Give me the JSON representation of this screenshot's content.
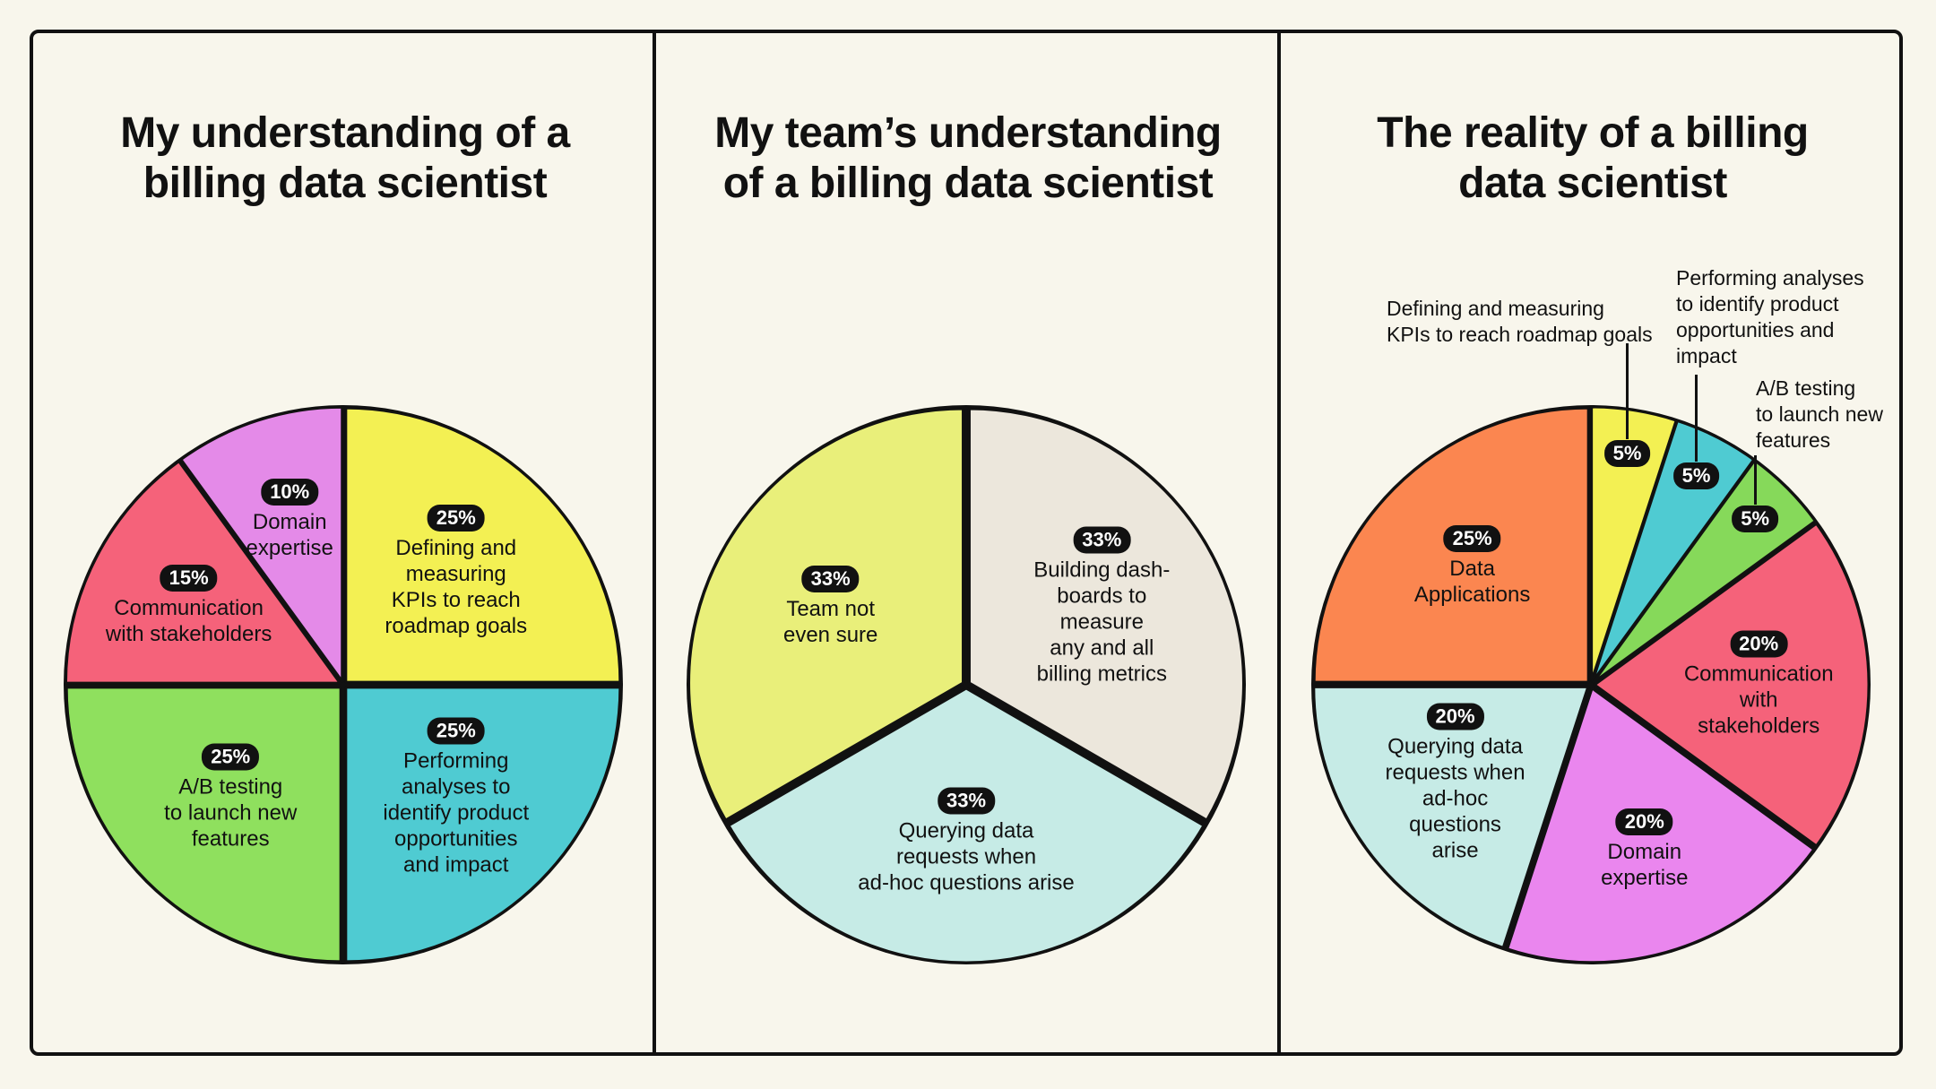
{
  "colors": {
    "pink": "#f5627a",
    "violet": "#e48ae8",
    "yellow": "#f3f053",
    "green": "#8fe05e",
    "teal": "#4fcbd2",
    "pale_yellow": "#e9ef7a",
    "beige": "#ece7dc",
    "pale_teal": "#c6ebe6",
    "orange": "#fb8650",
    "magenta": "#ea86ee",
    "lime": "#86d95a",
    "stroke": "#111111"
  },
  "panels": [
    {
      "title": "My understanding of a\nbilling data scientist"
    },
    {
      "title": "My team’s understanding\nof a billing data scientist"
    },
    {
      "title": "The reality of a billing\ndata scientist"
    }
  ],
  "chart_data": [
    {
      "type": "pie",
      "title": "My understanding of a billing data scientist",
      "slices": [
        {
          "label": "Defining and\nmeasuring\nKPIs to reach\nroadmap goals",
          "value": 25,
          "value_label": "25%",
          "color": "#f3f053"
        },
        {
          "label": "Performing\nanalyses to\nidentify product\nopportunities\nand impact",
          "value": 25,
          "value_label": "25%",
          "color": "#4fcbd2"
        },
        {
          "label": "A/B testing\nto launch new\nfeatures",
          "value": 25,
          "value_label": "25%",
          "color": "#8fe05e"
        },
        {
          "label": "Communication\nwith stakeholders",
          "value": 15,
          "value_label": "15%",
          "color": "#f5627a"
        },
        {
          "label": "Domain\nexpertise",
          "value": 10,
          "value_label": "10%",
          "color": "#e48ae8"
        }
      ]
    },
    {
      "type": "pie",
      "title": "My team’s understanding of a billing data scientist",
      "slices": [
        {
          "label": "Building dash-\nboards to measure\nany and all\nbilling metrics",
          "value": 33.33,
          "value_label": "33%",
          "color": "#ece7dc"
        },
        {
          "label": "Querying data\nrequests when\nad-hoc questions arise",
          "value": 33.33,
          "value_label": "33%",
          "color": "#c6ebe6"
        },
        {
          "label": "Team not\neven sure",
          "value": 33.33,
          "value_label": "33%",
          "color": "#e9ef7a"
        }
      ]
    },
    {
      "type": "pie",
      "title": "The reality of a billing data scientist",
      "slices": [
        {
          "label": "Defining and measuring\nKPIs to reach roadmap goals",
          "value": 5,
          "value_label": "5%",
          "color": "#f3f053",
          "external": true
        },
        {
          "label": "Performing analyses\nto identify product\nopportunities and\nimpact",
          "value": 5,
          "value_label": "5%",
          "color": "#4fcbd2",
          "external": true
        },
        {
          "label": "A/B testing\nto launch new\nfeatures",
          "value": 5,
          "value_label": "5%",
          "color": "#86d95a",
          "external": true
        },
        {
          "label": "Communication\nwith stakeholders",
          "value": 20,
          "value_label": "20%",
          "color": "#f5627a"
        },
        {
          "label": "Domain\nexpertise",
          "value": 20,
          "value_label": "20%",
          "color": "#ea86ee"
        },
        {
          "label": "Querying data\nrequests when\nad-hoc\nquestions\narise",
          "value": 20,
          "value_label": "20%",
          "color": "#c6ebe6"
        },
        {
          "label": "Data\nApplications",
          "value": 25,
          "value_label": "25%",
          "color": "#fb8650"
        }
      ]
    }
  ]
}
